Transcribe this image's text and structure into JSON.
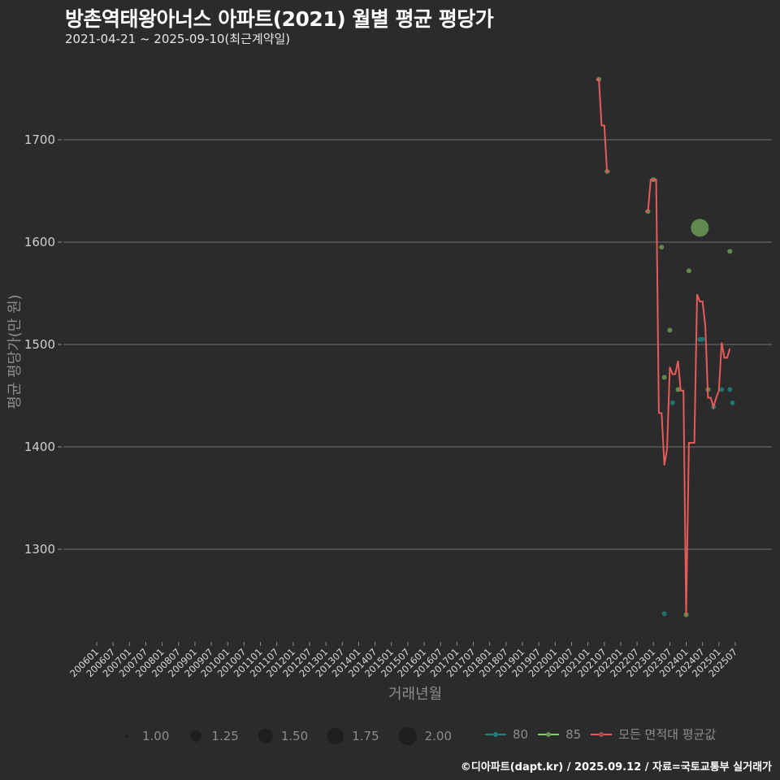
{
  "header": {
    "title": "방촌역태왕아너스 아파트(2021) 월별 평균 평당가",
    "subtitle": "2021-04-21 ~ 2025-09-10(최근계약일)"
  },
  "axes": {
    "ylabel": "평균 평당가(만 원)",
    "xlabel": "거래년월"
  },
  "caption": "©디아파트(dapt.kr) / 2025.09.12 / 자료=국토교통부 실거래가",
  "legend": {
    "sizes": [
      {
        "label": "1.00",
        "r": 2
      },
      {
        "label": "1.25",
        "r": 6
      },
      {
        "label": "1.50",
        "r": 9
      },
      {
        "label": "1.75",
        "r": 10
      },
      {
        "label": "2.00",
        "r": 11
      }
    ],
    "series": [
      {
        "label": "80",
        "color": "#1f8a8a"
      },
      {
        "label": "85",
        "color": "#7fcf6f"
      },
      {
        "label": "모든 면적대 평균값",
        "color": "#e85a5a"
      }
    ]
  },
  "colors": {
    "background": "#2b2b2b",
    "grid": "#5a5a5a",
    "line": "#e85a5a",
    "s80": "#1f7f7a",
    "s85": "#6a9a55"
  },
  "chart_data": {
    "type": "line",
    "title": "방촌역태왕아너스 아파트(2021) 월별 평균 평당가",
    "subtitle": "2021-04-21 ~ 2025-09-10(최근계약일)",
    "xlabel": "거래년월",
    "ylabel": "평균 평당가(만 원)",
    "ylim": [
      1215,
      1790
    ],
    "yticks": [
      1300,
      1400,
      1500,
      1600,
      1700
    ],
    "xticks": [
      "200601",
      "200607",
      "200701",
      "200707",
      "200801",
      "200807",
      "200901",
      "200907",
      "201001",
      "201007",
      "201101",
      "201107",
      "201201",
      "201207",
      "201301",
      "201307",
      "201401",
      "201407",
      "201501",
      "201507",
      "201601",
      "201607",
      "201701",
      "201707",
      "201801",
      "201807",
      "201901",
      "201907",
      "202001",
      "202007",
      "202101",
      "202107",
      "202201",
      "202207",
      "202301",
      "202307",
      "202401",
      "202407",
      "202501",
      "202507"
    ],
    "grid": true,
    "legend_position": "bottom",
    "series": [
      {
        "name": "모든 면적대 평균값",
        "type": "line",
        "points": [
          [
            "202104",
            1759
          ],
          [
            "202105",
            1759
          ],
          [
            "202106",
            1714
          ],
          [
            "202107",
            1714
          ],
          [
            "202108",
            1669
          ],
          [
            "202109",
            1669
          ],
          [
            "202210",
            1630
          ],
          [
            "202211",
            1630
          ],
          [
            "202212",
            1661
          ],
          [
            "202301",
            1661
          ],
          [
            "202302",
            1661
          ],
          [
            "202303",
            1433
          ],
          [
            "202304",
            1433
          ],
          [
            "202305",
            1382
          ],
          [
            "202306",
            1398
          ],
          [
            "202307",
            1478
          ],
          [
            "202308",
            1471
          ],
          [
            "202309",
            1471
          ],
          [
            "202310",
            1484
          ],
          [
            "202311",
            1455
          ],
          [
            "202312",
            1455
          ],
          [
            "202401",
            1236
          ],
          [
            "202402",
            1404
          ],
          [
            "202403",
            1404
          ],
          [
            "202404",
            1404
          ],
          [
            "202405",
            1549
          ],
          [
            "202406",
            1542
          ],
          [
            "202407",
            1542
          ],
          [
            "202408",
            1518
          ],
          [
            "202409",
            1448
          ],
          [
            "202410",
            1448
          ],
          [
            "202411",
            1439
          ],
          [
            "202412",
            1448
          ],
          [
            "202501",
            1455
          ],
          [
            "202502",
            1502
          ],
          [
            "202503",
            1487
          ],
          [
            "202504",
            1487
          ],
          [
            "202505",
            1496
          ]
        ]
      },
      {
        "name": "85",
        "type": "scatter",
        "points": [
          [
            "202105",
            1759,
            1
          ],
          [
            "202108",
            1669,
            1
          ],
          [
            "202211",
            1630,
            1
          ],
          [
            "202301",
            1661,
            1
          ],
          [
            "202304",
            1595,
            1
          ],
          [
            "202305",
            1468,
            1
          ],
          [
            "202307",
            1514,
            1
          ],
          [
            "202310",
            1456,
            1
          ],
          [
            "202401",
            1236,
            1
          ],
          [
            "202402",
            1572,
            1
          ],
          [
            "202406",
            1614,
            2
          ],
          [
            "202409",
            1456,
            1
          ],
          [
            "202505",
            1591,
            1
          ]
        ]
      },
      {
        "name": "80",
        "type": "scatter",
        "points": [
          [
            "202305",
            1237,
            1
          ],
          [
            "202308",
            1443,
            1
          ],
          [
            "202406",
            1505,
            1
          ],
          [
            "202407",
            1505,
            1
          ],
          [
            "202411",
            1439,
            1
          ],
          [
            "202502",
            1456,
            1
          ],
          [
            "202505",
            1456,
            1
          ],
          [
            "202506",
            1443,
            1
          ]
        ]
      }
    ]
  }
}
